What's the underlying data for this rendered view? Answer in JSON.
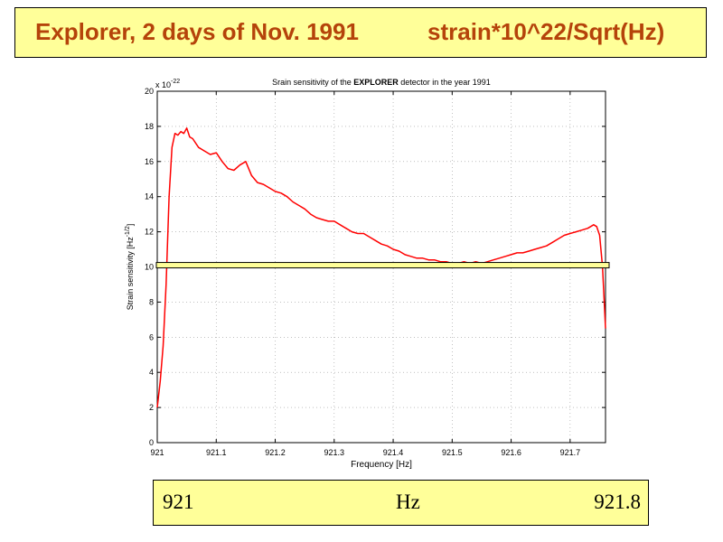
{
  "slide": {
    "title_left": "Explorer, 2 days of Nov. 1991",
    "title_right": "strain*10^22/Sqrt(Hz)",
    "bottom_left": "921",
    "bottom_center": "Hz",
    "bottom_right": "921.8"
  },
  "colors": {
    "title_text": "#b5430a",
    "box_fill": "#ffff99",
    "series_line": "#ff0000"
  },
  "chart_data": {
    "type": "line",
    "title_prefix": "Srain sensitivity of the ",
    "title_bold": "EXPLORER",
    "title_suffix": " detector in the year 1991",
    "xlabel": "Frequency [Hz]",
    "ylabel_text": "Strain sensitivity [Hz",
    "ylabel_exp": "-1/2",
    "ylabel_close": "]",
    "y_multiplier_base": "x 10",
    "y_multiplier_exp": "-22",
    "xlim": [
      921.0,
      921.76
    ],
    "ylim": [
      0,
      20
    ],
    "xticks": [
      921,
      921.1,
      921.2,
      921.3,
      921.4,
      921.5,
      921.6,
      921.7
    ],
    "xtick_labels": [
      "921",
      "921.1",
      "921.2",
      "921.3",
      "921.4",
      "921.5",
      "921.6",
      "921.7"
    ],
    "yticks": [
      0,
      2,
      4,
      6,
      8,
      10,
      12,
      14,
      16,
      18,
      20
    ],
    "ytick_labels": [
      "0",
      "2",
      "4",
      "6",
      "8",
      "10",
      "12",
      "14",
      "16",
      "18",
      "20"
    ],
    "grid": true,
    "reference_line_y": 10.1,
    "series": [
      {
        "x": [
          921.0,
          921.005,
          921.01,
          921.015,
          921.02,
          921.025,
          921.03,
          921.035,
          921.04,
          921.045,
          921.05,
          921.055,
          921.06,
          921.07,
          921.08,
          921.09,
          921.1,
          921.11,
          921.12,
          921.13,
          921.14,
          921.15,
          921.16,
          921.17,
          921.18,
          921.19,
          921.2,
          921.21,
          921.22,
          921.23,
          921.24,
          921.25,
          921.26,
          921.27,
          921.28,
          921.29,
          921.3,
          921.31,
          921.32,
          921.33,
          921.34,
          921.35,
          921.36,
          921.37,
          921.38,
          921.39,
          921.4,
          921.41,
          921.42,
          921.43,
          921.44,
          921.45,
          921.46,
          921.47,
          921.48,
          921.49,
          921.5,
          921.51,
          921.52,
          921.53,
          921.54,
          921.55,
          921.56,
          921.57,
          921.58,
          921.59,
          921.6,
          921.61,
          921.62,
          921.63,
          921.64,
          921.65,
          921.66,
          921.67,
          921.68,
          921.69,
          921.7,
          921.71,
          921.72,
          921.73,
          921.74,
          921.745,
          921.75,
          921.755,
          921.76
        ],
        "y": [
          2.0,
          3.5,
          5.5,
          9.0,
          14.0,
          16.8,
          17.6,
          17.5,
          17.7,
          17.6,
          17.9,
          17.4,
          17.3,
          16.8,
          16.6,
          16.4,
          16.5,
          16.0,
          15.6,
          15.5,
          15.8,
          16.0,
          15.2,
          14.8,
          14.7,
          14.5,
          14.3,
          14.2,
          14.0,
          13.7,
          13.5,
          13.3,
          13.0,
          12.8,
          12.7,
          12.6,
          12.6,
          12.4,
          12.2,
          12.0,
          11.9,
          11.9,
          11.7,
          11.5,
          11.3,
          11.2,
          11.0,
          10.9,
          10.7,
          10.6,
          10.5,
          10.5,
          10.4,
          10.4,
          10.3,
          10.3,
          10.2,
          10.2,
          10.3,
          10.2,
          10.3,
          10.2,
          10.3,
          10.4,
          10.5,
          10.6,
          10.7,
          10.8,
          10.8,
          10.9,
          11.0,
          11.1,
          11.2,
          11.4,
          11.6,
          11.8,
          11.9,
          12.0,
          12.1,
          12.2,
          12.4,
          12.3,
          11.8,
          10.0,
          6.5
        ]
      }
    ]
  }
}
